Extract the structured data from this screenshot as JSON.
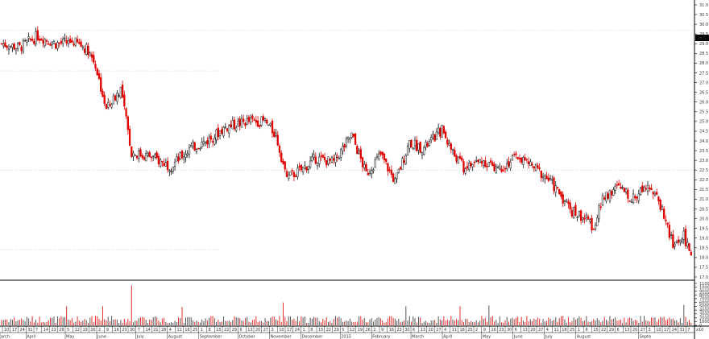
{
  "chart_data": {
    "type": "candlestick",
    "x_labels": {
      "months": [
        "arch",
        "April",
        "May",
        "June",
        "July",
        "August",
        "September",
        "October",
        "November",
        "December",
        "2015",
        "February",
        "March",
        "April",
        "May",
        "June",
        "July",
        "August",
        "Septe"
      ],
      "days": [
        "10",
        "17",
        "24",
        "31",
        "7",
        "14",
        "22",
        "28",
        "5",
        "12",
        "19",
        "26",
        "2",
        "9",
        "16",
        "23",
        "30",
        "7",
        "14",
        "21",
        "28",
        "4",
        "11",
        "18",
        "25",
        "1",
        "8",
        "15",
        "22",
        "29",
        "6",
        "13",
        "20",
        "27",
        "3",
        "10",
        "17",
        "24",
        "1",
        "8",
        "15",
        "22",
        "29",
        "5",
        "12",
        "19",
        "26",
        "2",
        "9",
        "16",
        "23",
        "30",
        "6",
        "13",
        "20",
        "27",
        "4",
        "11",
        "18",
        "25",
        "2",
        "9",
        "16",
        "23",
        "30",
        "6",
        "13",
        "20",
        "27",
        "4",
        "11",
        "18",
        "25",
        "1",
        "8",
        "15",
        "22",
        "29",
        "6",
        "13",
        "20",
        "27",
        "3",
        "10",
        "17",
        "24",
        "31",
        "7"
      ]
    },
    "price_axis": {
      "ticks": [
        "31.0",
        "30.5",
        "30.0",
        "29.5",
        "29.0",
        "28.5",
        "28.0",
        "27.5",
        "27.0",
        "26.5",
        "26.0",
        "25.5",
        "25.0",
        "24.5",
        "24.0",
        "23.5",
        "23.0",
        "22.5",
        "22.0",
        "21.5",
        "21.0",
        "20.5",
        "20.0",
        "19.5",
        "19.0",
        "18.5",
        "18.0",
        "17.5",
        "17.0"
      ],
      "range": [
        17.0,
        31.0
      ],
      "current_price": "29.3",
      "current_label_color": "#ffffff"
    },
    "volume_axis": {
      "ticks": [
        "11000",
        "10000",
        "9000",
        "8000",
        "7000",
        "6000",
        "5000",
        "4000",
        "3000",
        "2000",
        "1000",
        "0"
      ],
      "range": [
        0,
        11000
      ],
      "unit_label": "x10"
    },
    "reference_lines": [
      29.7,
      27.6,
      22.5,
      18.4
    ],
    "anchors": [
      [
        0,
        29.0
      ],
      [
        10,
        28.8
      ],
      [
        20,
        29.4
      ],
      [
        30,
        29.0
      ],
      [
        40,
        29.1
      ],
      [
        48,
        28.7
      ],
      [
        52,
        27.9
      ],
      [
        58,
        25.6
      ],
      [
        66,
        26.7
      ],
      [
        72,
        23.4
      ],
      [
        82,
        23.2
      ],
      [
        94,
        22.7
      ],
      [
        104,
        23.6
      ],
      [
        114,
        24.0
      ],
      [
        124,
        24.7
      ],
      [
        136,
        25.0
      ],
      [
        146,
        25.0
      ],
      [
        152,
        24.3
      ],
      [
        158,
        22.1
      ],
      [
        166,
        22.5
      ],
      [
        174,
        23.1
      ],
      [
        184,
        22.9
      ],
      [
        194,
        24.3
      ],
      [
        202,
        22.3
      ],
      [
        210,
        23.3
      ],
      [
        218,
        21.9
      ],
      [
        226,
        23.9
      ],
      [
        234,
        23.6
      ],
      [
        244,
        24.6
      ],
      [
        250,
        23.4
      ],
      [
        256,
        22.6
      ],
      [
        266,
        23.0
      ],
      [
        276,
        22.6
      ],
      [
        286,
        23.2
      ],
      [
        294,
        22.7
      ],
      [
        302,
        22.1
      ],
      [
        310,
        21.2
      ],
      [
        316,
        20.4
      ],
      [
        322,
        20.1
      ],
      [
        328,
        19.6
      ],
      [
        334,
        21.2
      ],
      [
        342,
        21.6
      ],
      [
        350,
        21.0
      ],
      [
        358,
        21.9
      ],
      [
        366,
        20.5
      ],
      [
        372,
        18.6
      ],
      [
        378,
        19.1
      ],
      [
        382,
        18.1
      ]
    ],
    "volume_spikes": {
      "36": 5000,
      "56": 5000,
      "72": 10500,
      "100": 4800,
      "156": 6000,
      "224": 5000,
      "254": 5000,
      "270": 5200,
      "378": 5400
    }
  }
}
